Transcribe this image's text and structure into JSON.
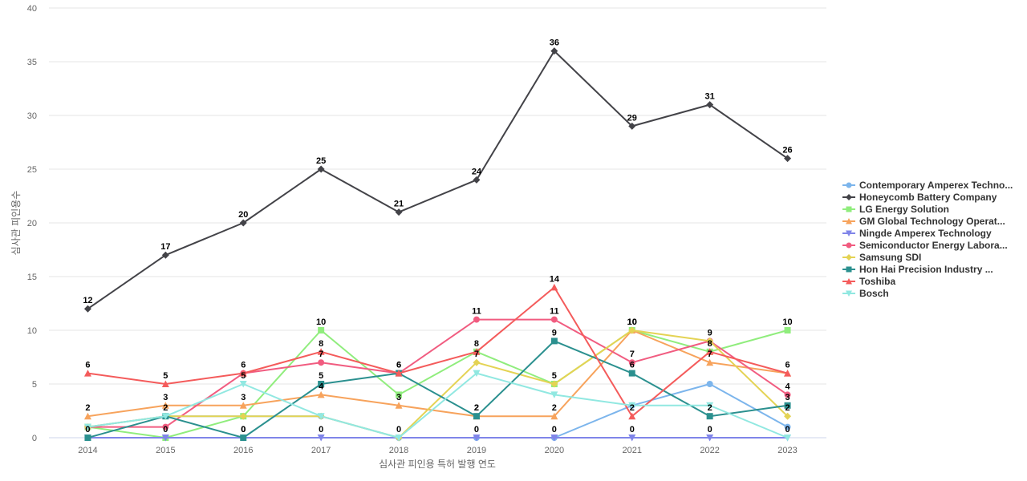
{
  "chart_data": {
    "type": "line",
    "title": "",
    "xlabel": "심사관 피인용 특허 발행 연도",
    "ylabel": "심사관 피인용수",
    "categories": [
      "2014",
      "2015",
      "2016",
      "2017",
      "2018",
      "2019",
      "2020",
      "2021",
      "2022",
      "2023"
    ],
    "ylim": [
      0,
      40
    ],
    "yticks": [
      0,
      5,
      10,
      15,
      20,
      25,
      30,
      35,
      40
    ],
    "grid": true,
    "legend_position": "right",
    "series": [
      {
        "name": "Contemporary Amperex Techno...",
        "color": "#7cb5ec",
        "marker": "circle",
        "values": [
          1,
          2,
          2,
          2,
          0,
          0,
          0,
          3,
          5,
          1
        ]
      },
      {
        "name": "Honeycomb Battery Company",
        "color": "#434348",
        "marker": "diamond",
        "values": [
          12,
          17,
          20,
          25,
          21,
          24,
          36,
          29,
          31,
          26
        ]
      },
      {
        "name": "LG Energy Solution",
        "color": "#90ed7d",
        "marker": "square",
        "values": [
          1,
          0,
          2,
          10,
          4,
          8,
          5,
          10,
          8,
          10
        ]
      },
      {
        "name": "GM Global Technology Operat...",
        "color": "#f7a35c",
        "marker": "triangle",
        "values": [
          2,
          3,
          3,
          4,
          3,
          2,
          2,
          10,
          7,
          6
        ]
      },
      {
        "name": "Ningde Amperex Technology",
        "color": "#8085e9",
        "marker": "triangle-down",
        "values": [
          0,
          0,
          0,
          0,
          0,
          0,
          0,
          0,
          0,
          0
        ]
      },
      {
        "name": "Semiconductor Energy Labora...",
        "color": "#f15c80",
        "marker": "circle",
        "values": [
          1,
          1,
          6,
          7,
          6,
          11,
          11,
          7,
          9,
          4
        ]
      },
      {
        "name": "Samsung SDI",
        "color": "#e4d354",
        "marker": "diamond",
        "values": [
          1,
          2,
          2,
          2,
          0,
          7,
          5,
          10,
          9,
          2
        ]
      },
      {
        "name": "Hon Hai Precision Industry ...",
        "color": "#2b908f",
        "marker": "square",
        "values": [
          0,
          2,
          0,
          5,
          6,
          2,
          9,
          6,
          2,
          3
        ]
      },
      {
        "name": "Toshiba",
        "color": "#f45b5b",
        "marker": "triangle",
        "values": [
          6,
          5,
          6,
          8,
          6,
          8,
          14,
          2,
          8,
          6
        ]
      },
      {
        "name": "Bosch",
        "color": "#91e8e1",
        "marker": "triangle-down",
        "values": [
          1,
          2,
          5,
          2,
          0,
          6,
          4,
          3,
          3,
          0
        ]
      }
    ],
    "data_labels": [
      {
        "series": 1,
        "points": [
          0,
          1,
          2,
          3,
          4,
          5,
          6,
          7,
          8,
          9
        ]
      },
      {
        "series": 2,
        "points": [
          3,
          9
        ]
      },
      {
        "series": 3,
        "points": [
          0,
          1,
          2,
          3,
          4,
          5,
          6,
          7,
          8
        ]
      },
      {
        "series": 4,
        "points": [
          0,
          1,
          2,
          3,
          4,
          5,
          6,
          7,
          8,
          9
        ]
      },
      {
        "series": 5,
        "points": [
          3,
          5,
          6,
          7,
          9
        ]
      },
      {
        "series": 6,
        "points": [
          5,
          6,
          7,
          8,
          9
        ]
      },
      {
        "series": 7,
        "points": [
          2,
          3,
          4,
          5,
          6,
          7,
          8,
          9
        ]
      },
      {
        "series": 8,
        "points": [
          0,
          1,
          2,
          3,
          4,
          5,
          6,
          7,
          8,
          9
        ]
      },
      {
        "series": 9,
        "points": [
          1,
          2
        ]
      }
    ]
  }
}
